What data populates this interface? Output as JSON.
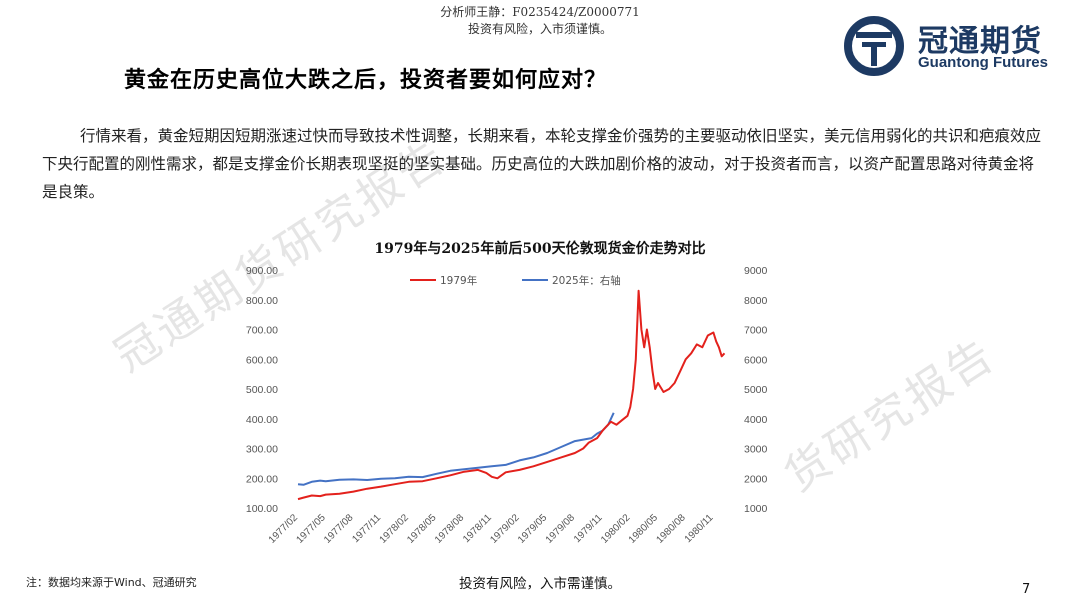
{
  "header": {
    "analyst": "分析师王静：F0235424/Z0000771",
    "risk": "投资有风险，入市须谨慎。"
  },
  "logo": {
    "cn": "冠通期货",
    "en": "Guantong Futures",
    "brand_color": "#1d3a63"
  },
  "headline": "黄金在历史高位大跌之后，投资者要如何应对？",
  "paragraph": "行情来看，黄金短期因短期涨速过快而导致技术性调整，长期来看，本轮支撑金价强势的主要驱动依旧坚实，美元信用弱化的共识和疤痕效应下央行配置的刚性需求，都是支撑金价长期表现坚挺的坚实基础。历史高位的大跌加剧价格的波动，对于投资者而言，以资产配置思路对待黄金将是良策。",
  "watermark": {
    "a": "冠通期货研究报告",
    "b": "货研究报告"
  },
  "chart_data": {
    "type": "line",
    "title": "1979年与2025年前后500天伦敦现货金价走势对比",
    "x_tick_labels": [
      "1977/02",
      "1977/05",
      "1977/08",
      "1977/11",
      "1978/02",
      "1978/05",
      "1978/08",
      "1978/11",
      "1979/02",
      "1979/05",
      "1979/08",
      "1979/11",
      "1980/02",
      "1980/05",
      "1980/08",
      "1980/11"
    ],
    "y_left": {
      "ticks": [
        "100.00",
        "200.00",
        "300.00",
        "400.00",
        "500.00",
        "600.00",
        "700.00",
        "800.00",
        "900.00"
      ],
      "min": 100,
      "max": 900
    },
    "y_right": {
      "ticks": [
        "1000",
        "2000",
        "3000",
        "4000",
        "5000",
        "6000",
        "7000",
        "8000",
        "9000"
      ],
      "min": 1000,
      "max": 9000
    },
    "legend_position": "top-center",
    "series": [
      {
        "name": "1979年",
        "color": "#e3211c",
        "axis": "left",
        "x": [
          0,
          0.2,
          0.5,
          0.8,
          1,
          1.5,
          2,
          2.5,
          3,
          3.5,
          4,
          4.5,
          5,
          5.5,
          6,
          6.5,
          6.8,
          7,
          7.2,
          7.5,
          8,
          8.5,
          9,
          9.5,
          10,
          10.3,
          10.5,
          10.8,
          11,
          11.3,
          11.5,
          11.7,
          11.9,
          12,
          12.1,
          12.2,
          12.3,
          12.4,
          12.5,
          12.6,
          12.7,
          12.8,
          12.9,
          13,
          13.2,
          13.4,
          13.6,
          13.8,
          14,
          14.2,
          14.4,
          14.6,
          14.8,
          15,
          15.1,
          15.2,
          15.3,
          15.4
        ],
        "y": [
          130,
          135,
          142,
          140,
          145,
          148,
          155,
          165,
          172,
          180,
          188,
          190,
          200,
          210,
          222,
          228,
          218,
          205,
          200,
          220,
          228,
          240,
          255,
          270,
          285,
          300,
          320,
          335,
          360,
          390,
          380,
          395,
          410,
          440,
          500,
          600,
          830,
          700,
          640,
          700,
          640,
          560,
          500,
          520,
          490,
          500,
          520,
          560,
          600,
          620,
          650,
          640,
          680,
          690,
          660,
          640,
          610,
          620
        ]
      },
      {
        "name": "2025年：右轴",
        "color": "#4472c4",
        "axis": "right",
        "x": [
          0,
          0.2,
          0.5,
          0.8,
          1,
          1.5,
          2,
          2.5,
          3,
          3.5,
          4,
          4.5,
          5,
          5.5,
          6,
          6.5,
          7,
          7.5,
          8,
          8.5,
          9,
          9.5,
          10,
          10.3,
          10.6,
          10.8,
          11,
          11.2,
          11.4
        ],
        "y": [
          1800,
          1780,
          1880,
          1920,
          1900,
          1950,
          1960,
          1940,
          1980,
          2000,
          2050,
          2040,
          2150,
          2250,
          2300,
          2350,
          2400,
          2450,
          2600,
          2700,
          2850,
          3050,
          3250,
          3300,
          3350,
          3500,
          3600,
          3800,
          4200
        ]
      }
    ]
  }
}
